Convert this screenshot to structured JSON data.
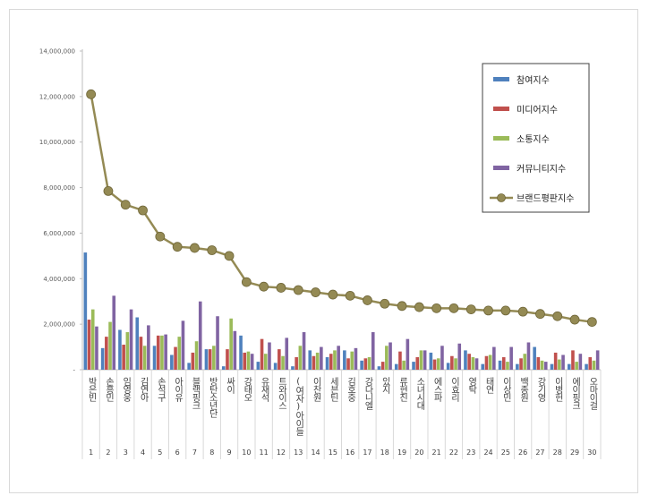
{
  "chart_data": {
    "type": "bar",
    "title": "",
    "xlabel": "",
    "ylabel": "",
    "ylim": [
      0,
      14000000
    ],
    "y_ticks": [
      {
        "value": 0,
        "label": "-"
      },
      {
        "value": 2000000,
        "label": "2,000,000"
      },
      {
        "value": 4000000,
        "label": "4,000,000"
      },
      {
        "value": 6000000,
        "label": "6,000,000"
      },
      {
        "value": 8000000,
        "label": "8,000,000"
      },
      {
        "value": 10000000,
        "label": "10,000,000"
      },
      {
        "value": 12000000,
        "label": "12,000,000"
      },
      {
        "value": 14000000,
        "label": "14,000,000"
      }
    ],
    "grid": false,
    "legend_position": "top-right",
    "ranks": [
      "1",
      "2",
      "3",
      "4",
      "5",
      "6",
      "7",
      "8",
      "9",
      "10",
      "11",
      "12",
      "13",
      "14",
      "15",
      "16",
      "17",
      "18",
      "19",
      "20",
      "21",
      "22",
      "23",
      "24",
      "25",
      "26",
      "27",
      "28",
      "29",
      "30"
    ],
    "categories": [
      "박은빈",
      "손흥민",
      "임영웅",
      "김연아",
      "손석구",
      "아이유",
      "블랙핑크",
      "방탄소년단",
      "싸이",
      "강태오",
      "유재석",
      "트와이스",
      "(여자)아이들",
      "이찬원",
      "세븐틴",
      "김호중",
      "강다니엘",
      "있지",
      "류현진",
      "소녀시대",
      "에스파",
      "이효리",
      "영탁",
      "태연",
      "이상민",
      "백종원",
      "강기영",
      "이병헌",
      "에이핑크",
      "오마이걸"
    ],
    "series": [
      {
        "name": "참여지수",
        "color": "#4f81bd",
        "kind": "bar",
        "values": [
          5150000,
          950000,
          1750000,
          2300000,
          1050000,
          650000,
          300000,
          900000,
          150000,
          1500000,
          350000,
          300000,
          150000,
          850000,
          550000,
          850000,
          400000,
          150000,
          250000,
          350000,
          750000,
          300000,
          850000,
          250000,
          400000,
          250000,
          1000000,
          250000,
          250000,
          250000
        ]
      },
      {
        "name": "미디어지수",
        "color": "#c0504d",
        "kind": "bar",
        "values": [
          2200000,
          1450000,
          1100000,
          1450000,
          1500000,
          1000000,
          750000,
          900000,
          900000,
          750000,
          1350000,
          900000,
          550000,
          600000,
          700000,
          500000,
          500000,
          350000,
          800000,
          550000,
          450000,
          600000,
          700000,
          600000,
          550000,
          500000,
          550000,
          750000,
          850000,
          550000
        ]
      },
      {
        "name": "소통지수",
        "color": "#9bbb59",
        "kind": "bar",
        "values": [
          2650000,
          2100000,
          1650000,
          1050000,
          1500000,
          1450000,
          1250000,
          1050000,
          2250000,
          800000,
          700000,
          600000,
          1050000,
          750000,
          850000,
          800000,
          550000,
          1050000,
          400000,
          850000,
          500000,
          500000,
          550000,
          650000,
          350000,
          700000,
          400000,
          450000,
          350000,
          400000
        ]
      },
      {
        "name": "커뮤니티지수",
        "color": "#8064a2",
        "kind": "bar",
        "values": [
          1900000,
          3250000,
          2650000,
          1950000,
          1550000,
          2150000,
          3000000,
          2350000,
          1700000,
          700000,
          1200000,
          1400000,
          1650000,
          1000000,
          1050000,
          950000,
          1650000,
          1200000,
          1350000,
          850000,
          1050000,
          1150000,
          500000,
          1000000,
          1000000,
          1200000,
          350000,
          650000,
          700000,
          850000
        ]
      },
      {
        "name": "브랜드평판지수",
        "color": "#948a54",
        "kind": "line",
        "values": [
          12100000,
          7850000,
          7250000,
          7000000,
          5850000,
          5400000,
          5350000,
          5250000,
          5000000,
          3850000,
          3650000,
          3600000,
          3500000,
          3400000,
          3300000,
          3250000,
          3050000,
          2900000,
          2800000,
          2750000,
          2700000,
          2700000,
          2650000,
          2600000,
          2600000,
          2550000,
          2450000,
          2350000,
          2200000,
          2100000
        ]
      }
    ]
  }
}
